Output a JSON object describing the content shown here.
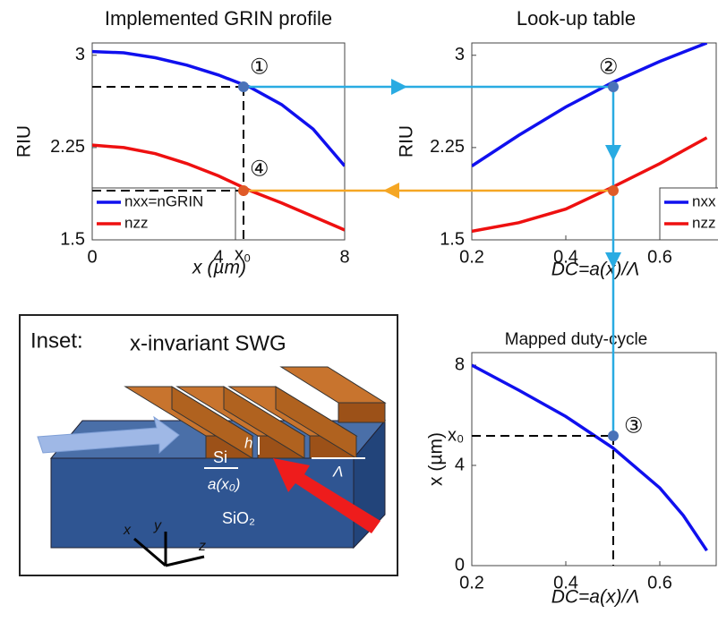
{
  "chart_data": [
    {
      "type": "line",
      "title": "Implemented GRIN profile",
      "xlabel": "x (µm)",
      "ylabel": "RIU",
      "x": [
        0,
        1,
        2,
        3,
        4,
        5,
        6,
        7,
        8
      ],
      "series": [
        {
          "name": "nxx=nGRIN",
          "color": "#1010ee",
          "values": [
            3.03,
            3.02,
            2.98,
            2.92,
            2.84,
            2.74,
            2.6,
            2.4,
            2.1
          ]
        },
        {
          "name": "nzz",
          "color": "#ee1010",
          "values": [
            2.27,
            2.25,
            2.2,
            2.12,
            2.02,
            1.9,
            1.8,
            1.69,
            1.58
          ]
        }
      ],
      "xlim": [
        0,
        8
      ],
      "ylim": [
        1.5,
        3.1
      ],
      "xticks": [
        0,
        4,
        8
      ],
      "yticks": [
        1.5,
        2.25,
        3
      ],
      "legend": "lower left",
      "annotations": [
        "①",
        "④",
        "x₀"
      ]
    },
    {
      "type": "line",
      "title": "Look-up table",
      "xlabel": "DC=a(x)/Λ",
      "ylabel": "RIU",
      "x": [
        0.2,
        0.3,
        0.4,
        0.5,
        0.6,
        0.7
      ],
      "series": [
        {
          "name": "nxx",
          "color": "#1010ee",
          "values": [
            2.1,
            2.35,
            2.58,
            2.78,
            2.95,
            3.1
          ]
        },
        {
          "name": "nzz",
          "color": "#ee1010",
          "values": [
            1.57,
            1.64,
            1.75,
            1.93,
            2.12,
            2.33
          ]
        }
      ],
      "xlim": [
        0.2,
        0.72
      ],
      "ylim": [
        1.5,
        3.1
      ],
      "xticks": [
        0.2,
        0.4,
        0.6
      ],
      "yticks": [
        1.5,
        2.25,
        3
      ],
      "legend": "lower right",
      "annotations": [
        "②"
      ]
    },
    {
      "type": "line",
      "title": "Mapped duty-cycle",
      "xlabel": "DC=a(x)/Λ",
      "ylabel": "x (µm)",
      "x": [
        0.2,
        0.3,
        0.4,
        0.5,
        0.6,
        0.65,
        0.7
      ],
      "series": [
        {
          "color": "#1010ee",
          "values": [
            8,
            7.0,
            5.95,
            4.7,
            3.1,
            2.0,
            0.6
          ]
        }
      ],
      "xlim": [
        0.2,
        0.72
      ],
      "ylim": [
        0,
        8.5
      ],
      "xticks": [
        0.2,
        0.4,
        0.6
      ],
      "yticks": [
        0,
        4,
        8
      ],
      "annotations": [
        "③",
        "x₀"
      ]
    }
  ],
  "inset": {
    "label": "Inset:",
    "title": "x-invariant SWG",
    "si": "Si",
    "height": "h",
    "period": "Λ",
    "width": "a(x₀)",
    "substrate": "SiO₂",
    "axes": [
      "x",
      "y",
      "z"
    ]
  }
}
